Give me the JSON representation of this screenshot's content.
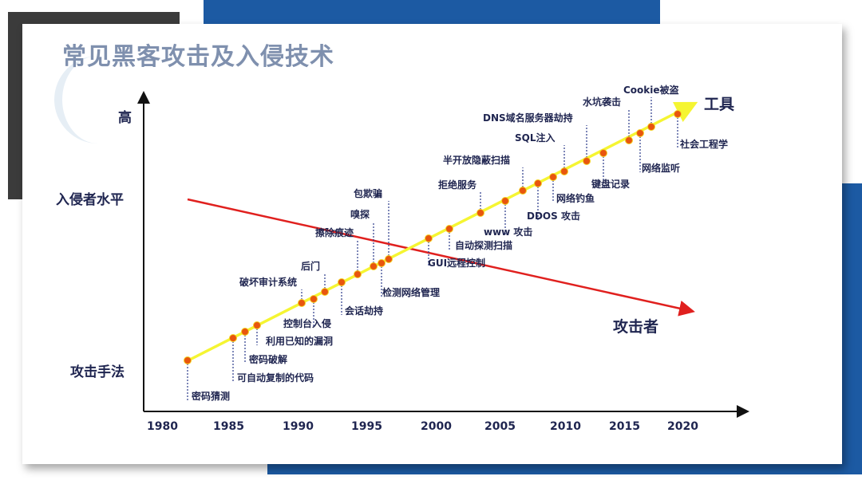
{
  "title": "常见黑客攻击及入侵技术",
  "y_axis": {
    "high": "高",
    "level": "入侵者水平",
    "methods": "攻击手法"
  },
  "x_axis": {
    "years": [
      "1980",
      "1985",
      "1990",
      "1995",
      "2000",
      "2005",
      "2010",
      "2015",
      "2020"
    ]
  },
  "lines": {
    "tools": "工具",
    "attackers": "攻击者",
    "tools_color": "#f5f532",
    "attackers_color": "#e0201e"
  },
  "events": [
    "密码猜测",
    "可自动复制的代码",
    "密码破解",
    "利用已知的漏洞",
    "破坏审计系统",
    "控制台入侵",
    "后门",
    "会话劫持",
    "擦除痕迹",
    "嗅探",
    "检测网络管理",
    "包欺骗",
    "GUI远程控制",
    "自动探测扫描",
    "拒绝服务",
    "www 攻击",
    "半开放隐蔽扫描",
    "DDOS 攻击",
    "网络钓鱼",
    "SQL注入",
    "DNS域名服务器劫持",
    "键盘记录",
    "水坑袭击",
    "网络监听",
    "Cookie被盗",
    "社会工程学"
  ]
}
